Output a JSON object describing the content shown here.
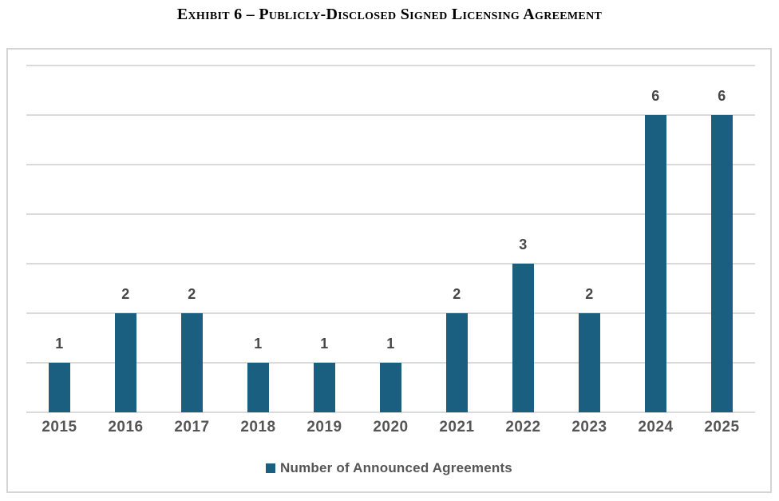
{
  "title": "Exhibit 6 – Publicly-Disclosed Signed Licensing Agreement",
  "legend": {
    "label": "Number of Announced Agreements"
  },
  "colors": {
    "bar": "#1B5F80",
    "gridline": "#DADADA",
    "chart_border": "#D5D5D5",
    "axis_label": "#555555",
    "data_label": "#474747",
    "title_text": "#000000"
  },
  "chart_data": {
    "type": "bar",
    "title": "Exhibit 6 – Publicly-Disclosed Signed Licensing Agreement",
    "categories": [
      "2015",
      "2016",
      "2017",
      "2018",
      "2019",
      "2020",
      "2021",
      "2022",
      "2023",
      "2024",
      "2025"
    ],
    "series": [
      {
        "name": "Number of Announced Agreements",
        "values": [
          1,
          2,
          2,
          1,
          1,
          1,
          2,
          3,
          2,
          6,
          6
        ]
      }
    ],
    "xlabel": "",
    "ylabel": "",
    "ylim": [
      0,
      7
    ],
    "gridline_step": 1,
    "grid": "horizontal",
    "data_labels": true,
    "legend_position": "bottom"
  }
}
